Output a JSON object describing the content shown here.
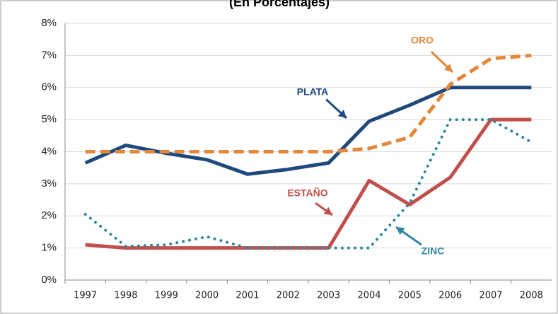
{
  "chart_data": {
    "type": "line",
    "title": "(En Porcentajes)",
    "categories": [
      "1997",
      "1998",
      "1999",
      "2000",
      "2001",
      "2002",
      "2003",
      "2004",
      "2005",
      "2006",
      "2007",
      "2008"
    ],
    "series": [
      {
        "name": "PLATA",
        "color": "#1f497d",
        "style": "solid",
        "values": [
          3.65,
          4.2,
          3.95,
          3.75,
          3.3,
          3.45,
          3.65,
          4.95,
          5.45,
          6.0,
          6.0,
          6.0
        ]
      },
      {
        "name": "ORO",
        "color": "#e3873a",
        "style": "dashed",
        "values": [
          4.0,
          4.0,
          4.0,
          4.0,
          4.0,
          4.0,
          4.0,
          4.1,
          4.45,
          6.1,
          6.9,
          7.0
        ]
      },
      {
        "name": "ESTAÑO",
        "color": "#c0504d",
        "style": "solid",
        "values": [
          1.1,
          1.0,
          1.0,
          1.0,
          1.0,
          1.0,
          1.0,
          3.1,
          2.35,
          3.2,
          5.0,
          5.0
        ]
      },
      {
        "name": "ZINC",
        "color": "#31869b",
        "style": "dotted",
        "values": [
          2.05,
          1.05,
          1.1,
          1.35,
          1.0,
          1.0,
          1.0,
          1.0,
          2.4,
          5.0,
          5.0,
          4.3
        ]
      }
    ],
    "ylim": [
      0,
      8
    ],
    "yticks": [
      {
        "value": 0,
        "label": "0%"
      },
      {
        "value": 1,
        "label": "1%"
      },
      {
        "value": 2,
        "label": "2%"
      },
      {
        "value": 3,
        "label": "3%"
      },
      {
        "value": 4,
        "label": "4%"
      },
      {
        "value": 5,
        "label": "5%"
      },
      {
        "value": 6,
        "label": "6%"
      },
      {
        "value": 7,
        "label": "7%"
      },
      {
        "value": 8,
        "label": "8%"
      }
    ],
    "grid": true
  }
}
